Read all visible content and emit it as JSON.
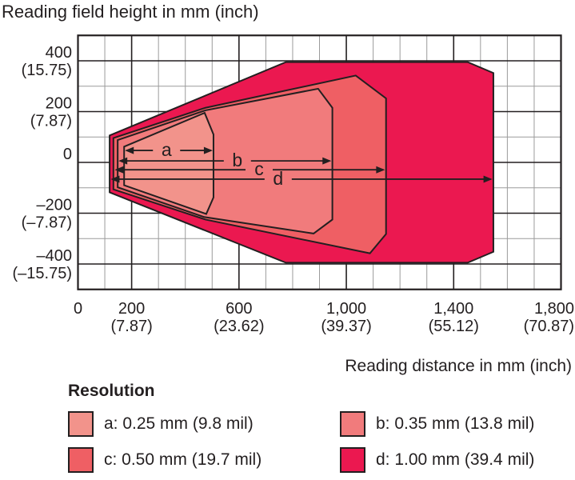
{
  "title": "Reading field height in mm (inch)",
  "x_axis_title": "Reading distance in mm (inch)",
  "legend": {
    "title": "Resolution",
    "items": [
      {
        "key": "a",
        "label": "a: 0.25 mm (9.8 mil)",
        "color": "#F2938B"
      },
      {
        "key": "b",
        "label": "b: 0.35 mm (13.8 mil)",
        "color": "#F17B7C"
      },
      {
        "key": "c",
        "label": "c: 0.50 mm (19.7 mil)",
        "color": "#EF5F64"
      },
      {
        "key": "d",
        "label": "d: 1.00 mm (39.4 mil)",
        "color": "#EB1850"
      }
    ]
  },
  "chart_data": {
    "type": "area",
    "title": "Reading field height in mm (inch)",
    "xlabel": "Reading distance in mm (inch)",
    "ylabel": "Reading field height in mm (inch)",
    "xlim": [
      0,
      1800
    ],
    "ylim": [
      -500,
      500
    ],
    "grid": {
      "minor_step_mm": 100,
      "major_x_mm": [
        200,
        600,
        1000,
        1400
      ],
      "minor_x_mm": [
        100,
        300,
        400,
        500,
        700,
        800,
        900,
        1100,
        1200,
        1300,
        1500,
        1600,
        1700
      ],
      "major_y_mm": [
        -400,
        -200,
        0,
        200,
        400
      ],
      "minor_y_mm": [
        -300,
        -100,
        100,
        300
      ]
    },
    "x_ticks": [
      {
        "value": 0,
        "mm": "0",
        "inch": ""
      },
      {
        "value": 200,
        "mm": "200",
        "inch": "(7.87)"
      },
      {
        "value": 600,
        "mm": "600",
        "inch": "(23.62)"
      },
      {
        "value": 1000,
        "mm": "1,000",
        "inch": "(39.37)"
      },
      {
        "value": 1400,
        "mm": "1,400",
        "inch": "(55.12)"
      },
      {
        "value": 1800,
        "mm": "1,800",
        "inch": "(70.87)"
      }
    ],
    "y_ticks": [
      {
        "value": 400,
        "mm": "400",
        "inch": "(15.75)"
      },
      {
        "value": 200,
        "mm": "200",
        "inch": "(7.87)"
      },
      {
        "value": 0,
        "mm": "0",
        "inch": ""
      },
      {
        "value": -200,
        "mm": "–200",
        "inch": "(–7.87)"
      },
      {
        "value": -400,
        "mm": "–400",
        "inch": "(–15.75)"
      }
    ],
    "series": [
      {
        "key": "a",
        "resolution": "0.25 mm (9.8 mil)",
        "color": "#F2938B",
        "max_reading_distance_mm": 505,
        "polygon_mm": [
          [
            172,
            62
          ],
          [
            472,
            195
          ],
          [
            505,
            110
          ],
          [
            505,
            -138
          ],
          [
            478,
            -203
          ],
          [
            172,
            -90
          ]
        ]
      },
      {
        "key": "b",
        "resolution": "0.35 mm (13.8 mil)",
        "color": "#F17B7C",
        "max_reading_distance_mm": 950,
        "polygon_mm": [
          [
            148,
            88
          ],
          [
            475,
            205
          ],
          [
            895,
            290
          ],
          [
            948,
            215
          ],
          [
            948,
            -225
          ],
          [
            878,
            -280
          ],
          [
            470,
            -215
          ],
          [
            148,
            -98
          ]
        ]
      },
      {
        "key": "c",
        "resolution": "0.50 mm (19.7 mil)",
        "color": "#EF5F64",
        "max_reading_distance_mm": 1150,
        "polygon_mm": [
          [
            132,
            96
          ],
          [
            475,
            215
          ],
          [
            1035,
            342
          ],
          [
            1148,
            252
          ],
          [
            1148,
            -282
          ],
          [
            1088,
            -358
          ],
          [
            475,
            -225
          ],
          [
            132,
            -106
          ]
        ]
      },
      {
        "key": "d",
        "resolution": "1.00 mm (39.4 mil)",
        "color": "#EB1850",
        "max_reading_distance_mm": 1550,
        "polygon_mm": [
          [
            118,
            106
          ],
          [
            775,
            395
          ],
          [
            1452,
            395
          ],
          [
            1548,
            352
          ],
          [
            1548,
            -352
          ],
          [
            1452,
            -395
          ],
          [
            775,
            -395
          ],
          [
            118,
            -118
          ]
        ]
      }
    ],
    "arrows": [
      {
        "label": "a",
        "y_mm": 47,
        "x1_mm": 175,
        "x2_mm": 502,
        "label_x_mm": 330
      },
      {
        "label": "b",
        "y_mm": 6,
        "x1_mm": 151,
        "x2_mm": 944,
        "label_x_mm": 594
      },
      {
        "label": "c",
        "y_mm": -29,
        "x1_mm": 137,
        "x2_mm": 1144,
        "label_x_mm": 675
      },
      {
        "label": "d",
        "y_mm": -66,
        "x1_mm": 122,
        "x2_mm": 1544,
        "label_x_mm": 746
      }
    ],
    "legend_position": "bottom"
  }
}
